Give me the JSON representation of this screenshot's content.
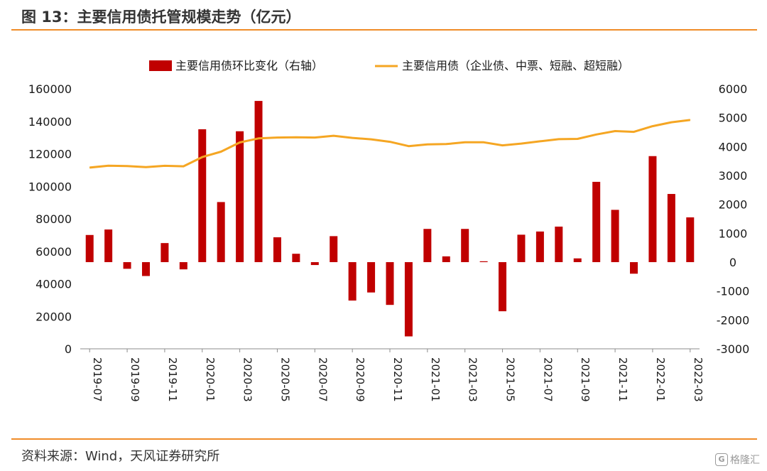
{
  "figure_title": "图 13：主要信用债托管规模走势（亿元）",
  "source_note": "资料来源：Wind，天风证券研究所",
  "watermark": "格隆汇",
  "colors": {
    "bar": "#c00000",
    "line": "#f5a623",
    "rule": "#f08c28",
    "axis": "#8c8c8c"
  },
  "chart_data": {
    "type": "bar+line",
    "categories": [
      "2019-07",
      "2019-08",
      "2019-09",
      "2019-10",
      "2019-11",
      "2019-12",
      "2020-01",
      "2020-02",
      "2020-03",
      "2020-04",
      "2020-05",
      "2020-06",
      "2020-07",
      "2020-08",
      "2020-09",
      "2020-10",
      "2020-11",
      "2020-12",
      "2021-01",
      "2021-02",
      "2021-03",
      "2021-04",
      "2021-05",
      "2021-06",
      "2021-07",
      "2021-08",
      "2021-09",
      "2021-10",
      "2021-11",
      "2021-12",
      "2022-01",
      "2022-02",
      "2022-03"
    ],
    "x_tick_labels": [
      "2019-07",
      "2019-09",
      "2019-11",
      "2020-01",
      "2020-03",
      "2020-05",
      "2020-07",
      "2020-09",
      "2020-11",
      "2021-01",
      "2021-03",
      "2021-05",
      "2021-07",
      "2021-09",
      "2021-11",
      "2022-01",
      "2022-03"
    ],
    "left_axis": {
      "ticks": [
        "0",
        "20000",
        "40000",
        "60000",
        "80000",
        "100000",
        "120000",
        "140000",
        "160000"
      ],
      "min": 0,
      "max": 160000
    },
    "right_axis": {
      "ticks": [
        "-3000",
        "-2000",
        "-1000",
        "0",
        "1000",
        "2000",
        "3000",
        "4000",
        "5000",
        "6000"
      ],
      "min": -3000,
      "max": 6000
    },
    "legend": [
      "主要信用债环比变化（右轴）",
      "主要信用债（企业债、中票、短融、超短融）"
    ],
    "legend_position": "top",
    "grid": false,
    "series": [
      {
        "name": "主要信用债环比变化（右轴）",
        "type": "bar",
        "axis": "right",
        "values": [
          940,
          1130,
          -230,
          -480,
          660,
          -250,
          4600,
          2080,
          4530,
          5580,
          860,
          290,
          -100,
          900,
          -1330,
          -1050,
          -1480,
          -2570,
          1150,
          200,
          1150,
          30,
          -1700,
          950,
          1060,
          1230,
          130,
          2780,
          1810,
          -400,
          3670,
          2360,
          1550
        ]
      },
      {
        "name": "主要信用债（企业债、中票、短融、超短融）",
        "type": "line",
        "axis": "left",
        "values": [
          111500,
          112700,
          112500,
          111800,
          112600,
          112300,
          118000,
          121300,
          127000,
          129500,
          130000,
          130200,
          130000,
          131100,
          129800,
          128900,
          127400,
          124700,
          125800,
          126000,
          127100,
          127100,
          125200,
          126300,
          127700,
          129000,
          129200,
          131900,
          134000,
          133500,
          137000,
          139400,
          140800
        ]
      }
    ]
  }
}
